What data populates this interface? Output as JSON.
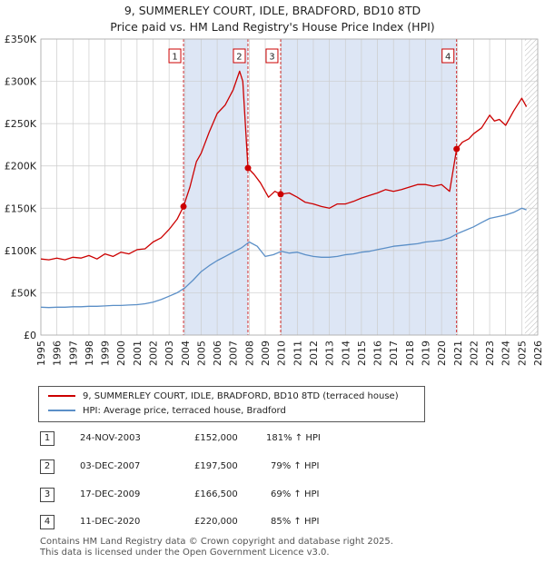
{
  "title_line1": "9, SUMMERLEY COURT, IDLE, BRADFORD, BD10 8TD",
  "title_line2": "Price paid vs. HM Land Registry's House Price Index (HPI)",
  "legend": {
    "property_label": "9, SUMMERLEY COURT, IDLE, BRADFORD, BD10 8TD (terraced house)",
    "hpi_label": "HPI: Average price, terraced house, Bradford"
  },
  "colors": {
    "property": "#cc0000",
    "hpi": "#5b8fc7",
    "shade": "#dde6f5",
    "grid": "#cccccc"
  },
  "transactions": [
    {
      "num": "1",
      "date": "24-NOV-2003",
      "price": "£152,000",
      "hpi": "181% ↑ HPI"
    },
    {
      "num": "2",
      "date": "03-DEC-2007",
      "price": "£197,500",
      "hpi": "79% ↑ HPI"
    },
    {
      "num": "3",
      "date": "17-DEC-2009",
      "price": "£166,500",
      "hpi": "69% ↑ HPI"
    },
    {
      "num": "4",
      "date": "11-DEC-2020",
      "price": "£220,000",
      "hpi": "85% ↑ HPI"
    }
  ],
  "footer_line1": "Contains HM Land Registry data © Crown copyright and database right 2025.",
  "footer_line2": "This data is licensed under the Open Government Licence v3.0.",
  "chart_data": {
    "type": "line",
    "title": "9, SUMMERLEY COURT, IDLE, BRADFORD, BD10 8TD",
    "subtitle": "Price paid vs. HM Land Registry's House Price Index (HPI)",
    "xlabel": "",
    "ylabel": "",
    "xlim": [
      1995,
      2026
    ],
    "ylim": [
      0,
      350000
    ],
    "y_ticks": [
      0,
      50000,
      100000,
      150000,
      200000,
      250000,
      300000,
      350000
    ],
    "y_tick_labels": [
      "£0",
      "£50K",
      "£100K",
      "£150K",
      "£200K",
      "£250K",
      "£300K",
      "£350K"
    ],
    "x_ticks": [
      1995,
      1996,
      1997,
      1998,
      1999,
      2000,
      2001,
      2002,
      2003,
      2004,
      2005,
      2006,
      2007,
      2008,
      2009,
      2010,
      2011,
      2012,
      2013,
      2014,
      2015,
      2016,
      2017,
      2018,
      2019,
      2020,
      2021,
      2022,
      2023,
      2024,
      2025,
      2026
    ],
    "x_tick_labels": [
      "1995",
      "1996",
      "1997",
      "1998",
      "1999",
      "2000",
      "2001",
      "2002",
      "2003",
      "2004",
      "2005",
      "2006",
      "2007",
      "2008",
      "2009",
      "2010",
      "2011",
      "2012",
      "2013",
      "2014",
      "2015",
      "2016",
      "2017",
      "2018",
      "2019",
      "2020",
      "2021",
      "2022",
      "2023",
      "2024",
      "2025",
      "2026"
    ],
    "shaded_ranges": [
      [
        2003.9,
        2007.92
      ],
      [
        2009.96,
        2020.94
      ]
    ],
    "markers": [
      {
        "label": "1",
        "x": 2003.9,
        "y": 152000
      },
      {
        "label": "2",
        "x": 2007.92,
        "y": 197500
      },
      {
        "label": "3",
        "x": 2009.96,
        "y": 166500
      },
      {
        "label": "4",
        "x": 2020.94,
        "y": 220000
      }
    ],
    "forecast_start": 2025.2,
    "series": [
      {
        "name": "9, SUMMERLEY COURT, IDLE, BRADFORD, BD10 8TD (terraced house)",
        "color": "#cc0000",
        "x": [
          1995,
          1995.5,
          1996,
          1996.5,
          1997,
          1997.5,
          1998,
          1998.5,
          1999,
          1999.5,
          2000,
          2000.5,
          2001,
          2001.5,
          2002,
          2002.5,
          2003,
          2003.5,
          2003.9,
          2004.3,
          2004.7,
          2005,
          2005.5,
          2006,
          2006.5,
          2007,
          2007.4,
          2007.6,
          2007.92,
          2008.3,
          2008.7,
          2009.2,
          2009.6,
          2009.96,
          2010.5,
          2011,
          2011.5,
          2012,
          2012.5,
          2013,
          2013.5,
          2014,
          2014.5,
          2015,
          2015.5,
          2016,
          2016.5,
          2017,
          2017.5,
          2018,
          2018.5,
          2019,
          2019.5,
          2020,
          2020.5,
          2020.94,
          2021.3,
          2021.7,
          2022,
          2022.5,
          2023,
          2023.3,
          2023.6,
          2024,
          2024.5,
          2025,
          2025.3
        ],
        "y": [
          90000,
          89000,
          91000,
          89000,
          92000,
          91000,
          94000,
          90000,
          96000,
          93000,
          98000,
          96000,
          101000,
          102000,
          110000,
          115000,
          125000,
          137000,
          152000,
          175000,
          205000,
          215000,
          240000,
          262000,
          272000,
          290000,
          312000,
          300000,
          197500,
          190000,
          180000,
          163000,
          170000,
          166500,
          168000,
          163000,
          157000,
          155000,
          152000,
          150000,
          155000,
          155000,
          158000,
          162000,
          165000,
          168000,
          172000,
          170000,
          172000,
          175000,
          178000,
          178000,
          176000,
          178000,
          170000,
          220000,
          228000,
          232000,
          238000,
          245000,
          260000,
          253000,
          255000,
          248000,
          265000,
          280000,
          270000
        ]
      },
      {
        "name": "HPI: Average price, terraced house, Bradford",
        "color": "#5b8fc7",
        "x": [
          1995,
          1995.5,
          1996,
          1996.5,
          1997,
          1997.5,
          1998,
          1998.5,
          1999,
          1999.5,
          2000,
          2000.5,
          2001,
          2001.5,
          2002,
          2002.5,
          2003,
          2003.5,
          2004,
          2004.5,
          2005,
          2005.5,
          2006,
          2006.5,
          2007,
          2007.5,
          2008,
          2008.5,
          2009,
          2009.5,
          2010,
          2010.5,
          2011,
          2011.5,
          2012,
          2012.5,
          2013,
          2013.5,
          2014,
          2014.5,
          2015,
          2015.5,
          2016,
          2016.5,
          2017,
          2017.5,
          2018,
          2018.5,
          2019,
          2019.5,
          2020,
          2020.5,
          2021,
          2021.5,
          2022,
          2022.5,
          2023,
          2023.5,
          2024,
          2024.5,
          2025,
          2025.3
        ],
        "y": [
          33000,
          32500,
          33000,
          33000,
          33500,
          33500,
          34000,
          34000,
          34500,
          35000,
          35000,
          35500,
          36000,
          37000,
          39000,
          42000,
          46000,
          50000,
          56000,
          65000,
          75000,
          82000,
          88000,
          93000,
          98000,
          103000,
          110000,
          105000,
          93000,
          95000,
          99000,
          97000,
          98000,
          95000,
          93000,
          92000,
          92000,
          93000,
          95000,
          96000,
          98000,
          99000,
          101000,
          103000,
          105000,
          106000,
          107000,
          108000,
          110000,
          111000,
          112000,
          115000,
          120000,
          124000,
          128000,
          133000,
          138000,
          140000,
          142000,
          145000,
          150000,
          148000
        ]
      }
    ]
  }
}
